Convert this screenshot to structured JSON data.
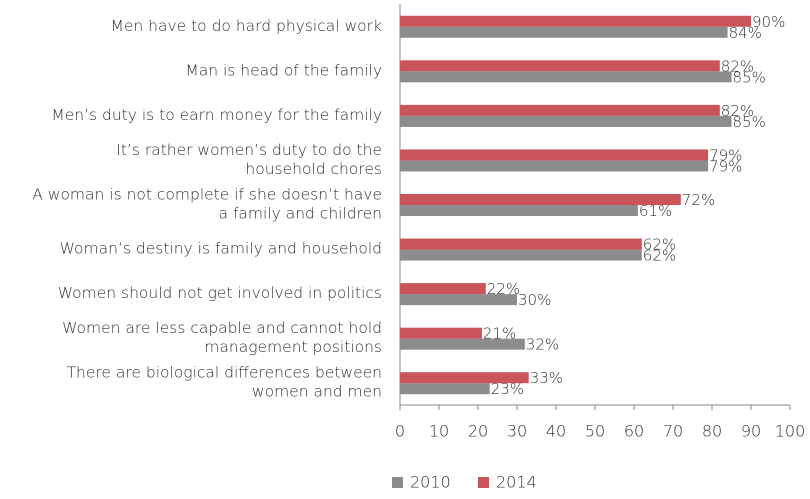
{
  "chart_data": {
    "type": "bar",
    "orientation": "horizontal",
    "categories": [
      [
        "Men have to do hard physical work"
      ],
      [
        "Man is head of the family"
      ],
      [
        "Men’s duty is to earn money for the family"
      ],
      [
        "It’s rather women’s duty to do the",
        "household chores"
      ],
      [
        "A woman is not complete if she doesn’t have",
        "a family and children"
      ],
      [
        "Woman’s destiny is family and household"
      ],
      [
        "Women should not get involved in politics"
      ],
      [
        "Women are less capable and cannot hold",
        "management positions"
      ],
      [
        "There are biological differences between",
        "women and men"
      ]
    ],
    "series": [
      {
        "name": "2010",
        "color": "#8c8c8c",
        "values": [
          84,
          85,
          85,
          79,
          61,
          62,
          30,
          32,
          23
        ],
        "value_labels": [
          "84%",
          "85%",
          "85%",
          "79%",
          "61%",
          "62%",
          "30%",
          "32%",
          "23%"
        ]
      },
      {
        "name": "2014",
        "color": "#c9545a",
        "values": [
          90,
          82,
          82,
          79,
          72,
          62,
          22,
          21,
          33
        ],
        "value_labels": [
          "90%",
          "82%",
          "82%",
          "79%",
          "72%",
          "62%",
          "22%",
          "21%",
          "33%"
        ]
      }
    ],
    "xlim": [
      0,
      100
    ],
    "xticks": [
      0,
      10,
      20,
      30,
      40,
      50,
      60,
      70,
      80,
      90,
      100
    ],
    "legend": "bottom"
  }
}
